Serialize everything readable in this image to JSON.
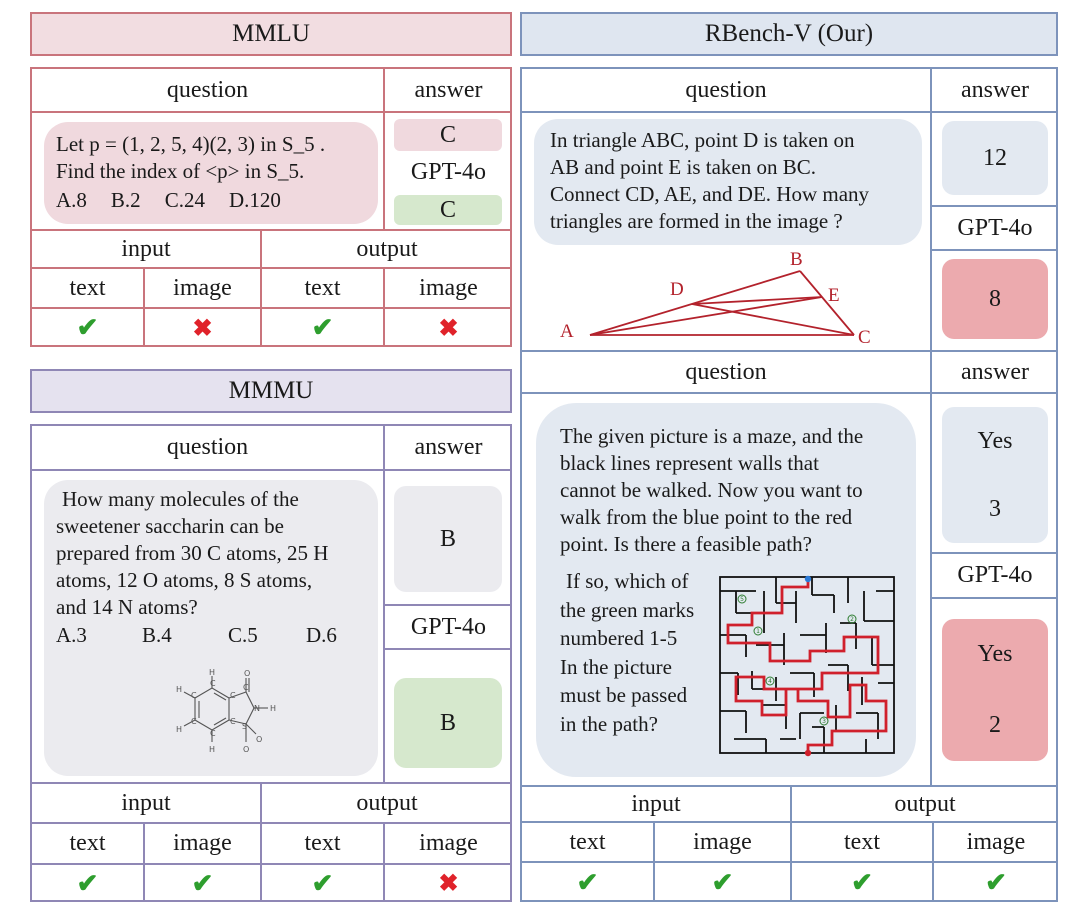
{
  "mmlu": {
    "title": "MMLU",
    "question_header": "question",
    "answer_header": "answer",
    "question_lines": [
      "Let p = (1, 2, 5, 4)(2, 3) in S_5 .",
      "Find the index of <p> in S_5."
    ],
    "options": [
      "A.8",
      "B.2",
      "C.24",
      "D.120"
    ],
    "answer": "C",
    "model_label": "GPT-4o",
    "model_answer": "C",
    "input_header": "input",
    "output_header": "output",
    "modalities": [
      "text",
      "image",
      "text",
      "image"
    ],
    "support": [
      "yes",
      "no",
      "yes",
      "no"
    ]
  },
  "mmmu": {
    "title": "MMMU",
    "question_header": "question",
    "answer_header": "answer",
    "question_lines": [
      "How many molecules of the",
      "sweetener saccharin can be",
      "prepared from 30 C atoms, 25 H",
      "atoms, 12 O atoms, 8 S atoms,",
      "and 14 N atoms?"
    ],
    "options": [
      "A.3",
      "B.4",
      "C.5",
      "D.6"
    ],
    "answer": "B",
    "model_label": "GPT-4o",
    "model_answer": "B",
    "input_header": "input",
    "output_header": "output",
    "modalities": [
      "text",
      "image",
      "text",
      "image"
    ],
    "support": [
      "yes",
      "yes",
      "yes",
      "no"
    ],
    "molecule_atoms": [
      "H",
      "H",
      "H",
      "H",
      "O",
      "O",
      "O",
      "C",
      "C",
      "C",
      "C",
      "C",
      "C",
      "C",
      "N",
      "H",
      "S"
    ]
  },
  "rbench": {
    "title": "RBench-V  (Our)",
    "q1": {
      "question_header": "question",
      "answer_header": "answer",
      "question_lines": [
        "In triangle ABC, point D is taken on",
        "AB and point E is taken on BC.",
        "Connect CD, AE, and DE. How many",
        "triangles are formed in the image ?"
      ],
      "answer": "12",
      "model_label": "GPT-4o",
      "model_answer": "8",
      "points": [
        "A",
        "B",
        "C",
        "D",
        "E"
      ]
    },
    "q2": {
      "question_header": "question",
      "answer_header": "answer",
      "question_lines": [
        "The given picture is a maze, and the",
        "black lines represent walls that",
        "cannot be walked. Now you want to",
        "walk from the blue point to the red",
        "point. Is there a feasible path?"
      ],
      "question_side_lines": [
        "If so, which of",
        "the green marks",
        "numbered 1-5",
        "In the picture",
        "must be passed",
        "in the path?"
      ],
      "answer_lines": [
        "Yes",
        "3"
      ],
      "model_label": "GPT-4o",
      "model_answer_lines": [
        "Yes",
        "2"
      ],
      "maze_marks": [
        "5",
        "2",
        "1",
        "4",
        "3"
      ]
    },
    "input_header": "input",
    "output_header": "output",
    "modalities": [
      "text",
      "image",
      "text",
      "image"
    ],
    "support": [
      "yes",
      "yes",
      "yes",
      "yes"
    ]
  },
  "colors": {
    "mmlu_border": "#c9747c",
    "mmlu_header_bg": "#f2dde1",
    "mmlu_bubble": "#f0d9de",
    "mmmu_border": "#8f87b5",
    "mmmu_header_bg": "#e5e2ef",
    "mmmu_bubble": "#ebebef",
    "rbench_border": "#7d93bb",
    "rbench_header_bg": "#dfe6f0",
    "rbench_bubble": "#e3e9f1",
    "correct_bg": "#d6e8cd",
    "wrong_bg": "#ecaaae",
    "figure_red": "#b3222c"
  }
}
